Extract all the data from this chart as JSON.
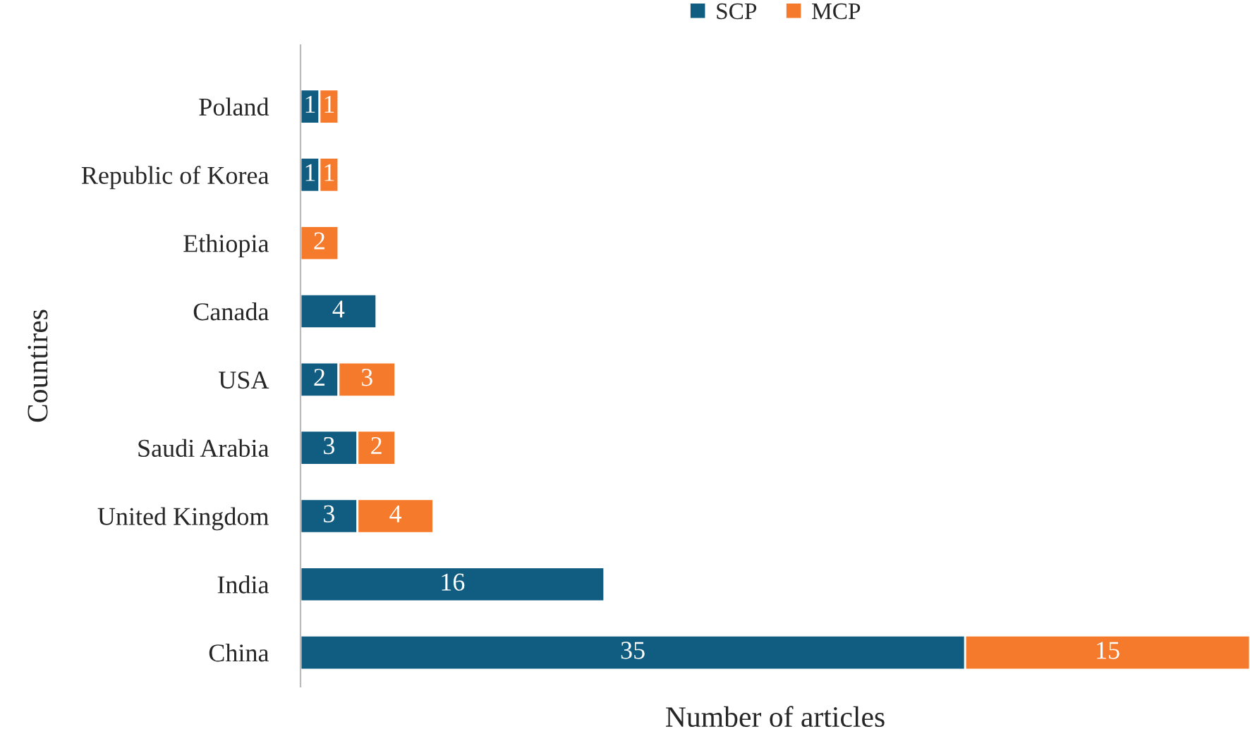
{
  "chart_data": {
    "type": "bar",
    "orientation": "horizontal",
    "stacked": true,
    "xlabel": "Number of articles",
    "ylabel": "Countires",
    "categories": [
      "Poland",
      "Republic of Korea",
      "Ethiopia",
      "Canada",
      "USA",
      "Saudi Arabia",
      "United Kingdom",
      "India",
      "China"
    ],
    "series": [
      {
        "name": "SCP",
        "color": "#115d82",
        "values": [
          1,
          1,
          null,
          4,
          2,
          3,
          3,
          16,
          35
        ]
      },
      {
        "name": "MCP",
        "color": "#f57a2c",
        "values": [
          1,
          1,
          2,
          null,
          3,
          2,
          4,
          null,
          15
        ]
      }
    ],
    "tick_labels": "y",
    "data_labels": true,
    "legend": "top",
    "grid": false
  }
}
